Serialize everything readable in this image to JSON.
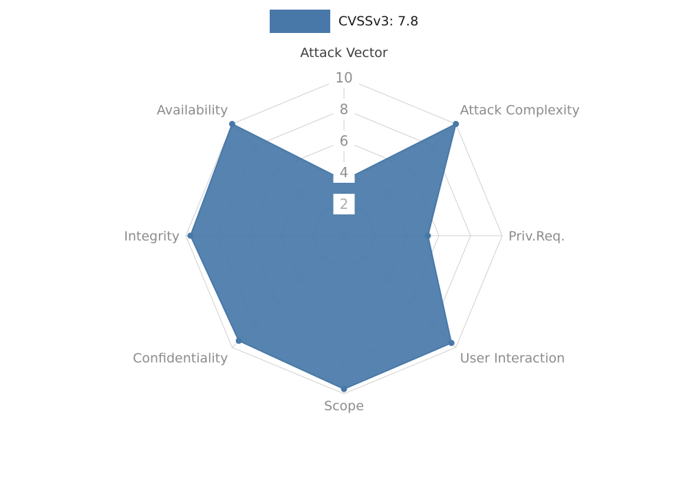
{
  "legend": {
    "label": "CVSSv3: 7.8",
    "swatch_color": "#4878a8"
  },
  "chart_data": {
    "type": "radar",
    "title": "CVSSv3: 7.8",
    "categories": [
      "Attack Vector",
      "Attack Complexity",
      "Priv.Req.",
      "User Interaction",
      "Scope",
      "Confidentiality",
      "Integrity",
      "Availability"
    ],
    "series": [
      {
        "name": "CVSSv3: 7.8",
        "values": [
          3.5,
          10,
          5.3,
          9.6,
          9.7,
          9.4,
          9.7,
          10
        ]
      }
    ],
    "ticks": [
      2,
      4,
      6,
      8,
      10
    ],
    "rlim": [
      0,
      10
    ],
    "fill_color": "#4878a8",
    "grid": true,
    "legend_position": "top-center"
  },
  "styles": {
    "grid_color": "#cfcfcf",
    "tick_color": "#8f8f8f",
    "tick_color_min": "#adadad",
    "axis_label_color": "#8c8c8c",
    "active_axis_label_color": "#3d3d3d",
    "background_color": "#ffffff"
  }
}
